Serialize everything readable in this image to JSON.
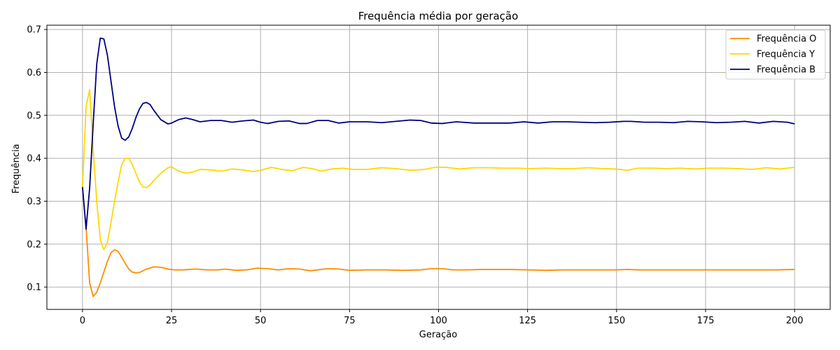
{
  "chart_data": {
    "type": "line",
    "title": "Frequência média por geração",
    "xlabel": "Geração",
    "ylabel": "Frequência",
    "xlim": [
      -10,
      210
    ],
    "ylim": [
      0.048,
      0.71
    ],
    "xticks": [
      0,
      25,
      50,
      75,
      100,
      125,
      150,
      175,
      200
    ],
    "yticks": [
      0.1,
      0.2,
      0.3,
      0.4,
      0.5,
      0.6,
      0.7
    ],
    "grid": true,
    "legend_position": "top-right",
    "series": [
      {
        "name": "Frequência O",
        "color": "#ff8c00",
        "points": [
          [
            0,
            0.333
          ],
          [
            1,
            0.24
          ],
          [
            2,
            0.11
          ],
          [
            3,
            0.078
          ],
          [
            4,
            0.088
          ],
          [
            5,
            0.11
          ],
          [
            6,
            0.135
          ],
          [
            7,
            0.16
          ],
          [
            8,
            0.18
          ],
          [
            9,
            0.187
          ],
          [
            10,
            0.183
          ],
          [
            11,
            0.17
          ],
          [
            12,
            0.155
          ],
          [
            13,
            0.142
          ],
          [
            14,
            0.135
          ],
          [
            15,
            0.133
          ],
          [
            16,
            0.134
          ],
          [
            17,
            0.138
          ],
          [
            18,
            0.142
          ],
          [
            20,
            0.147
          ],
          [
            22,
            0.146
          ],
          [
            24,
            0.142
          ],
          [
            26,
            0.14
          ],
          [
            28,
            0.14
          ],
          [
            30,
            0.141
          ],
          [
            32,
            0.142
          ],
          [
            35,
            0.14
          ],
          [
            38,
            0.14
          ],
          [
            40,
            0.142
          ],
          [
            43,
            0.139
          ],
          [
            46,
            0.14
          ],
          [
            49,
            0.144
          ],
          [
            52,
            0.143
          ],
          [
            55,
            0.14
          ],
          [
            58,
            0.143
          ],
          [
            61,
            0.142
          ],
          [
            64,
            0.138
          ],
          [
            66,
            0.14
          ],
          [
            69,
            0.143
          ],
          [
            72,
            0.142
          ],
          [
            75,
            0.139
          ],
          [
            80,
            0.14
          ],
          [
            85,
            0.14
          ],
          [
            90,
            0.139
          ],
          [
            95,
            0.14
          ],
          [
            98,
            0.143
          ],
          [
            101,
            0.143
          ],
          [
            104,
            0.14
          ],
          [
            108,
            0.14
          ],
          [
            112,
            0.141
          ],
          [
            116,
            0.141
          ],
          [
            120,
            0.141
          ],
          [
            125,
            0.14
          ],
          [
            130,
            0.139
          ],
          [
            135,
            0.14
          ],
          [
            140,
            0.14
          ],
          [
            145,
            0.14
          ],
          [
            150,
            0.14
          ],
          [
            153,
            0.141
          ],
          [
            156,
            0.14
          ],
          [
            160,
            0.14
          ],
          [
            165,
            0.14
          ],
          [
            170,
            0.14
          ],
          [
            175,
            0.14
          ],
          [
            180,
            0.14
          ],
          [
            185,
            0.14
          ],
          [
            190,
            0.14
          ],
          [
            195,
            0.14
          ],
          [
            200,
            0.141
          ]
        ]
      },
      {
        "name": "Frequência Y",
        "color": "#ffd700",
        "points": [
          [
            0,
            0.333
          ],
          [
            1,
            0.52
          ],
          [
            2,
            0.56
          ],
          [
            3,
            0.42
          ],
          [
            4,
            0.3
          ],
          [
            5,
            0.21
          ],
          [
            6,
            0.187
          ],
          [
            7,
            0.205
          ],
          [
            8,
            0.25
          ],
          [
            9,
            0.3
          ],
          [
            10,
            0.345
          ],
          [
            11,
            0.385
          ],
          [
            12,
            0.4
          ],
          [
            13,
            0.4
          ],
          [
            14,
            0.385
          ],
          [
            15,
            0.365
          ],
          [
            16,
            0.345
          ],
          [
            17,
            0.333
          ],
          [
            18,
            0.332
          ],
          [
            19,
            0.338
          ],
          [
            20,
            0.348
          ],
          [
            22,
            0.365
          ],
          [
            24,
            0.378
          ],
          [
            25,
            0.38
          ],
          [
            27,
            0.37
          ],
          [
            29,
            0.365
          ],
          [
            31,
            0.368
          ],
          [
            33,
            0.374
          ],
          [
            36,
            0.373
          ],
          [
            39,
            0.37
          ],
          [
            42,
            0.375
          ],
          [
            45,
            0.373
          ],
          [
            48,
            0.369
          ],
          [
            50,
            0.372
          ],
          [
            53,
            0.379
          ],
          [
            56,
            0.374
          ],
          [
            59,
            0.371
          ],
          [
            62,
            0.379
          ],
          [
            65,
            0.375
          ],
          [
            67,
            0.37
          ],
          [
            70,
            0.375
          ],
          [
            73,
            0.377
          ],
          [
            76,
            0.374
          ],
          [
            80,
            0.374
          ],
          [
            84,
            0.378
          ],
          [
            88,
            0.376
          ],
          [
            92,
            0.372
          ],
          [
            96,
            0.374
          ],
          [
            99,
            0.379
          ],
          [
            102,
            0.379
          ],
          [
            106,
            0.375
          ],
          [
            110,
            0.378
          ],
          [
            114,
            0.378
          ],
          [
            118,
            0.377
          ],
          [
            122,
            0.377
          ],
          [
            126,
            0.376
          ],
          [
            130,
            0.377
          ],
          [
            134,
            0.376
          ],
          [
            138,
            0.376
          ],
          [
            142,
            0.378
          ],
          [
            146,
            0.376
          ],
          [
            150,
            0.375
          ],
          [
            153,
            0.372
          ],
          [
            156,
            0.377
          ],
          [
            160,
            0.377
          ],
          [
            164,
            0.376
          ],
          [
            168,
            0.377
          ],
          [
            172,
            0.375
          ],
          [
            176,
            0.377
          ],
          [
            180,
            0.377
          ],
          [
            184,
            0.376
          ],
          [
            188,
            0.374
          ],
          [
            192,
            0.378
          ],
          [
            196,
            0.375
          ],
          [
            200,
            0.379
          ]
        ]
      },
      {
        "name": "Frequência B",
        "color": "#000080",
        "points": [
          [
            0,
            0.333
          ],
          [
            1,
            0.235
          ],
          [
            2,
            0.33
          ],
          [
            3,
            0.48
          ],
          [
            4,
            0.62
          ],
          [
            5,
            0.68
          ],
          [
            6,
            0.678
          ],
          [
            7,
            0.64
          ],
          [
            8,
            0.58
          ],
          [
            9,
            0.52
          ],
          [
            10,
            0.475
          ],
          [
            11,
            0.447
          ],
          [
            12,
            0.442
          ],
          [
            13,
            0.45
          ],
          [
            14,
            0.47
          ],
          [
            15,
            0.495
          ],
          [
            16,
            0.515
          ],
          [
            17,
            0.528
          ],
          [
            18,
            0.53
          ],
          [
            19,
            0.525
          ],
          [
            20,
            0.512
          ],
          [
            22,
            0.49
          ],
          [
            24,
            0.48
          ],
          [
            25,
            0.482
          ],
          [
            27,
            0.49
          ],
          [
            29,
            0.494
          ],
          [
            31,
            0.49
          ],
          [
            33,
            0.485
          ],
          [
            36,
            0.488
          ],
          [
            39,
            0.488
          ],
          [
            42,
            0.484
          ],
          [
            45,
            0.487
          ],
          [
            48,
            0.489
          ],
          [
            50,
            0.484
          ],
          [
            52,
            0.481
          ],
          [
            55,
            0.486
          ],
          [
            58,
            0.487
          ],
          [
            61,
            0.481
          ],
          [
            63,
            0.481
          ],
          [
            66,
            0.488
          ],
          [
            69,
            0.488
          ],
          [
            72,
            0.482
          ],
          [
            75,
            0.485
          ],
          [
            80,
            0.485
          ],
          [
            84,
            0.483
          ],
          [
            88,
            0.486
          ],
          [
            92,
            0.489
          ],
          [
            95,
            0.488
          ],
          [
            98,
            0.482
          ],
          [
            101,
            0.481
          ],
          [
            105,
            0.485
          ],
          [
            110,
            0.482
          ],
          [
            115,
            0.482
          ],
          [
            120,
            0.482
          ],
          [
            124,
            0.485
          ],
          [
            128,
            0.482
          ],
          [
            132,
            0.485
          ],
          [
            136,
            0.485
          ],
          [
            140,
            0.484
          ],
          [
            144,
            0.483
          ],
          [
            148,
            0.484
          ],
          [
            152,
            0.486
          ],
          [
            154,
            0.486
          ],
          [
            158,
            0.484
          ],
          [
            162,
            0.484
          ],
          [
            166,
            0.483
          ],
          [
            170,
            0.486
          ],
          [
            174,
            0.485
          ],
          [
            178,
            0.483
          ],
          [
            182,
            0.484
          ],
          [
            186,
            0.486
          ],
          [
            190,
            0.482
          ],
          [
            194,
            0.486
          ],
          [
            198,
            0.484
          ],
          [
            200,
            0.48
          ]
        ]
      }
    ]
  }
}
